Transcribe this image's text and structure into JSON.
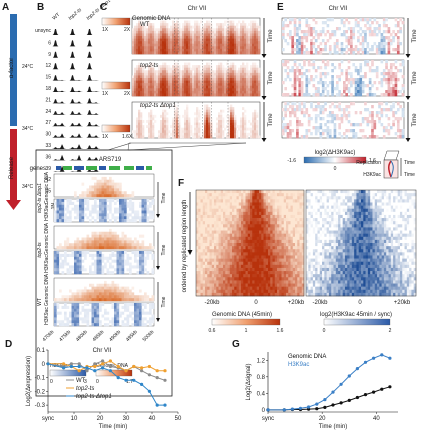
{
  "panels": {
    "A": {
      "letter": "A",
      "arrest_label": "α-factor",
      "release_label": "Release",
      "temp_top": "24°C",
      "temp_mid": "34°C",
      "temp_bottom": "34°C",
      "bar_colors": [
        "#2b5aa8",
        "#c0202a"
      ]
    },
    "B": {
      "letter": "B",
      "columns": [
        "WT",
        "top2-ts",
        "top2-ts Δtop1"
      ],
      "first_row": "unsync",
      "time_rows": [
        "6",
        "9",
        "12",
        "15",
        "18",
        "21",
        "24",
        "27",
        "30",
        "33",
        "36",
        "39",
        "42",
        "45"
      ],
      "x_ticks": [
        "1N",
        "2N",
        "1N",
        "2N",
        "1N",
        "2N"
      ]
    },
    "C": {
      "letter": "C",
      "title": "Chr VII",
      "heatmaps": [
        {
          "label": "WT",
          "scale_min": "1X",
          "scale_max": "2X",
          "scale_title": "Genomic DNA"
        },
        {
          "label": "top2-ts",
          "scale_min": "1X",
          "scale_max": "2X"
        },
        {
          "label": "top2-ts Δtop1",
          "scale_min": "1X",
          "scale_max": "1.6X"
        }
      ],
      "time_label": "Time"
    },
    "E": {
      "letter": "E",
      "title": "Chr VII",
      "time_label": "Time",
      "scale_title": "log2(ΔH3K9ac)",
      "scale_min": "-1.6",
      "scale_mid": "0",
      "scale_max": "1.6",
      "inset_labels": [
        "Replication",
        "H3K9ac"
      ]
    },
    "zoom": {
      "title": "ARS719",
      "genes_label": "genes",
      "row_labels": [
        {
          "group": "top2-ts Δtop1",
          "sub": [
            "Genomic DNA",
            "H3K9ac"
          ]
        },
        {
          "group": "top2-ts",
          "sub": [
            "Genomic DNA",
            "H3K9ac"
          ]
        },
        {
          "group": "WT",
          "sub": [
            "Genomic DNA",
            "H3K9ac"
          ]
        }
      ],
      "time_label": "Time",
      "x_ticks": [
        "470kb",
        "475kb",
        "480kb",
        "485kb",
        "490kb",
        "495kb",
        "500kb"
      ],
      "x_title": "Chr VII",
      "legend_h3": "H3K9ac",
      "legend_dna": "Genomic DNA",
      "legend_h3_ticks": [
        "0",
        "3"
      ],
      "legend_dna_ticks": [
        "0",
        "1.7"
      ]
    },
    "F": {
      "letter": "F",
      "y_title": "ordered by replicated region length",
      "left_ticks": [
        "-20kb",
        "0",
        "+20kb"
      ],
      "right_ticks": [
        "-20kb",
        "0",
        "+20kb"
      ],
      "left_scale_title": "Genomic DNA (45min)",
      "left_scale_ticks": [
        "0.6",
        "1",
        "1.6"
      ],
      "right_scale_title": "log2(H3K9ac 45min / sync)",
      "right_scale_ticks": [
        "0",
        "2"
      ]
    }
  },
  "colors": {
    "dna_low": "#ffffff",
    "dna_high": "#b8320c",
    "h3_pos": "#c0202a",
    "h3_neg": "#2b6cb0",
    "wt": "#8c8c8c",
    "top2": "#f0a030",
    "top2_top1": "#2f86c9",
    "genomic_dna": "#111111",
    "h3k9ac": "#3a7fc6"
  },
  "chart_data": [
    {
      "panel": "D",
      "type": "line",
      "title": "",
      "xlabel": "Time (min)",
      "ylabel": "Log2(Δexpression)",
      "x_tick_labels": [
        "sync",
        "10",
        "20",
        "30",
        "40",
        "50"
      ],
      "y_tick_labels": [
        "0.1",
        "0",
        "-0.1",
        "-0.2",
        "-0.3"
      ],
      "xlim": [
        0,
        50
      ],
      "ylim": [
        -0.35,
        0.1
      ],
      "series": [
        {
          "name": "WT",
          "color": "#8c8c8c",
          "x": [
            0,
            6,
            9,
            12,
            15,
            18,
            21,
            24,
            27,
            30,
            33,
            36,
            39,
            42,
            45
          ],
          "y": [
            0.0,
            -0.02,
            0.0,
            0.0,
            -0.05,
            0.0,
            0.02,
            -0.02,
            -0.03,
            -0.05,
            -0.02,
            -0.05,
            -0.08,
            -0.1,
            -0.12
          ]
        },
        {
          "name": "top2-ts",
          "color": "#f0a030",
          "x": [
            0,
            6,
            9,
            12,
            15,
            18,
            21,
            24,
            27,
            30,
            33,
            36,
            39,
            42,
            45
          ],
          "y": [
            0.0,
            0.0,
            -0.02,
            -0.05,
            -0.02,
            -0.02,
            0.0,
            0.02,
            -0.02,
            -0.05,
            -0.02,
            -0.03,
            -0.02,
            -0.05,
            -0.05
          ]
        },
        {
          "name": "top2-ts Δtop1",
          "color": "#2f86c9",
          "x": [
            0,
            6,
            9,
            12,
            15,
            18,
            21,
            24,
            27,
            30,
            33,
            36,
            39,
            42,
            45
          ],
          "y": [
            0.0,
            -0.03,
            -0.02,
            -0.02,
            -0.03,
            -0.05,
            -0.03,
            -0.05,
            -0.1,
            -0.12,
            -0.12,
            -0.15,
            -0.2,
            -0.3,
            -0.3
          ]
        }
      ]
    },
    {
      "panel": "G",
      "type": "line",
      "title": "",
      "xlabel": "Time (min)",
      "ylabel": "Log2(Δsignal)",
      "x_tick_labels": [
        "sync",
        "20",
        "40"
      ],
      "y_tick_labels": [
        "0",
        "0.4",
        "0.8",
        "1.2"
      ],
      "xlim": [
        0,
        48
      ],
      "ylim": [
        -0.05,
        1.4
      ],
      "series": [
        {
          "name": "Genomic DNA",
          "color": "#111111",
          "x": [
            0,
            6,
            9,
            12,
            15,
            18,
            21,
            24,
            27,
            30,
            33,
            36,
            39,
            42,
            45
          ],
          "y": [
            0.0,
            0.0,
            0.01,
            0.01,
            0.02,
            0.03,
            0.06,
            0.12,
            0.17,
            0.23,
            0.3,
            0.37,
            0.43,
            0.5,
            0.56
          ]
        },
        {
          "name": "H3K9ac",
          "color": "#3a7fc6",
          "x": [
            0,
            6,
            9,
            12,
            15,
            18,
            21,
            24,
            27,
            30,
            33,
            36,
            39,
            42,
            45
          ],
          "y": [
            0.0,
            0.0,
            0.02,
            0.04,
            0.07,
            0.14,
            0.25,
            0.43,
            0.62,
            0.82,
            1.0,
            1.15,
            1.25,
            1.33,
            1.25
          ]
        }
      ]
    }
  ]
}
